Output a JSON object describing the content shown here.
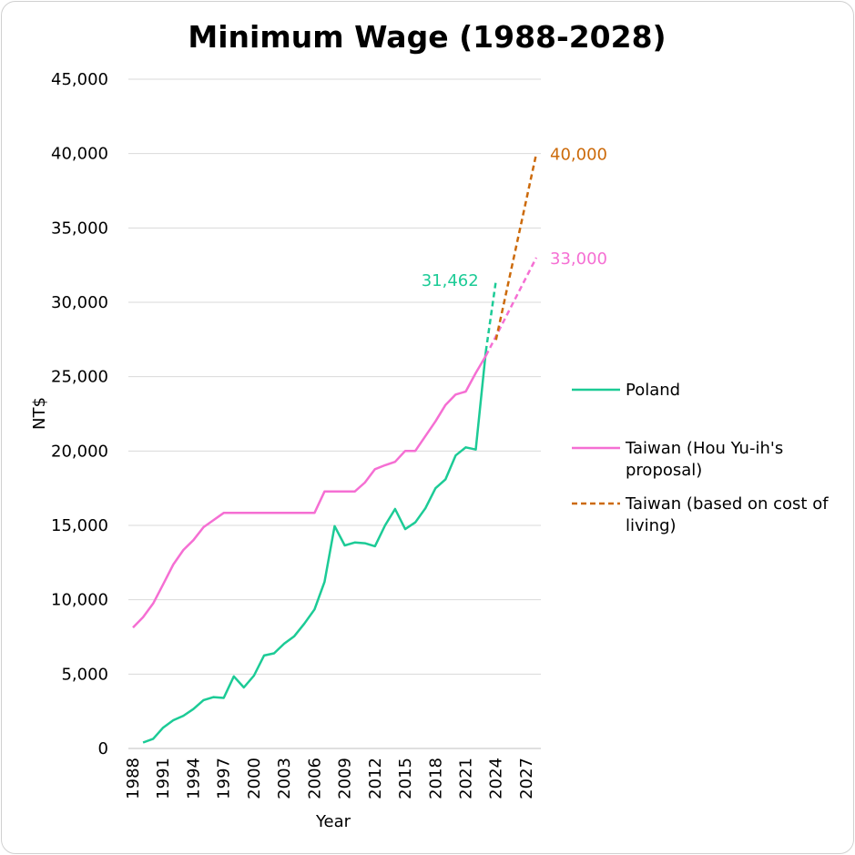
{
  "chart_data": {
    "type": "line",
    "title": "Minimum Wage (1988-2028)",
    "xlabel": "Year",
    "ylabel": "NT$",
    "xlim": [
      1988,
      2028
    ],
    "ylim": [
      0,
      45000
    ],
    "yticks": [
      "0",
      "5,000",
      "10,000",
      "15,000",
      "20,000",
      "25,000",
      "30,000",
      "35,000",
      "40,000",
      "45,000"
    ],
    "xticks": [
      "1988",
      "1991",
      "1994",
      "1997",
      "2000",
      "2003",
      "2006",
      "2009",
      "2012",
      "2015",
      "2018",
      "2021",
      "2024",
      "2027"
    ],
    "grid": true,
    "legend_position": "right",
    "colors": {
      "poland": "#1ccb96",
      "taiwan": "#f56fd3",
      "taiwan_cost": "#cc6a0a"
    },
    "series": [
      {
        "name": "Poland",
        "style": "solid",
        "color": "#1ccb96",
        "x": [
          1989,
          1990,
          1991,
          1992,
          1993,
          1994,
          1995,
          1996,
          1997,
          1998,
          1999,
          2000,
          2001,
          2002,
          2003,
          2004,
          2005,
          2006,
          2007,
          2008,
          2009,
          2010,
          2011,
          2012,
          2013,
          2014,
          2015,
          2016,
          2017,
          2018,
          2019,
          2020,
          2021,
          2022,
          2023
        ],
        "y": [
          400,
          650,
          1400,
          1900,
          2200,
          2650,
          3250,
          3450,
          3400,
          4850,
          4100,
          4900,
          6250,
          6400,
          7050,
          7550,
          8400,
          9350,
          11200,
          14950,
          13650,
          13850,
          13800,
          13600,
          15000,
          16100,
          14750,
          15200,
          16150,
          17500,
          18100,
          19700,
          20250,
          20100,
          26700
        ]
      },
      {
        "name": "Poland projection",
        "style": "dashed",
        "color": "#1ccb96",
        "x": [
          2023,
          2024
        ],
        "y": [
          26700,
          31462
        ]
      },
      {
        "name": "Taiwan (Hou Yu-ih's proposal)",
        "style": "solid",
        "color": "#f56fd3",
        "x": [
          1988,
          1989,
          1990,
          1991,
          1992,
          1993,
          1994,
          1995,
          1996,
          1997,
          1998,
          1999,
          2000,
          2001,
          2002,
          2003,
          2004,
          2005,
          2006,
          2007,
          2008,
          2009,
          2010,
          2011,
          2012,
          2013,
          2014,
          2015,
          2016,
          2017,
          2018,
          2019,
          2020,
          2021,
          2022,
          2023
        ],
        "y": [
          8130,
          8820,
          9750,
          11040,
          12365,
          13350,
          14010,
          14880,
          15360,
          15840,
          15840,
          15840,
          15840,
          15840,
          15840,
          15840,
          15840,
          15840,
          15840,
          17280,
          17280,
          17280,
          17280,
          17880,
          18780,
          19047,
          19273,
          20008,
          20008,
          21009,
          22000,
          23100,
          23800,
          24000,
          25250,
          26400
        ]
      },
      {
        "name": "Taiwan (Hou Yu-ih's proposal) projection",
        "style": "dashed",
        "color": "#f56fd3",
        "x": [
          2023,
          2028
        ],
        "y": [
          26400,
          33000
        ]
      },
      {
        "name": "Taiwan (based on cost of living)",
        "style": "dashed",
        "color": "#cc6a0a",
        "x": [
          2024,
          2028
        ],
        "y": [
          27470,
          40000
        ]
      }
    ],
    "annotations": [
      {
        "text": "31,462",
        "x": 2024,
        "y": 31462,
        "color": "#1ccb96"
      },
      {
        "text": "40,000",
        "x": 2028,
        "y": 40000,
        "color": "#cc6a0a"
      },
      {
        "text": "33,000",
        "x": 2028,
        "y": 33000,
        "color": "#f56fd3"
      }
    ],
    "legend": [
      {
        "label": "Poland",
        "style": "solid",
        "color": "#1ccb96"
      },
      {
        "label_lines": [
          "Taiwan (Hou Yu-ih's",
          "proposal)"
        ],
        "style": "solid",
        "color": "#f56fd3"
      },
      {
        "label_lines": [
          "Taiwan (based on cost of",
          "living)"
        ],
        "style": "dashed",
        "color": "#cc6a0a"
      }
    ]
  }
}
